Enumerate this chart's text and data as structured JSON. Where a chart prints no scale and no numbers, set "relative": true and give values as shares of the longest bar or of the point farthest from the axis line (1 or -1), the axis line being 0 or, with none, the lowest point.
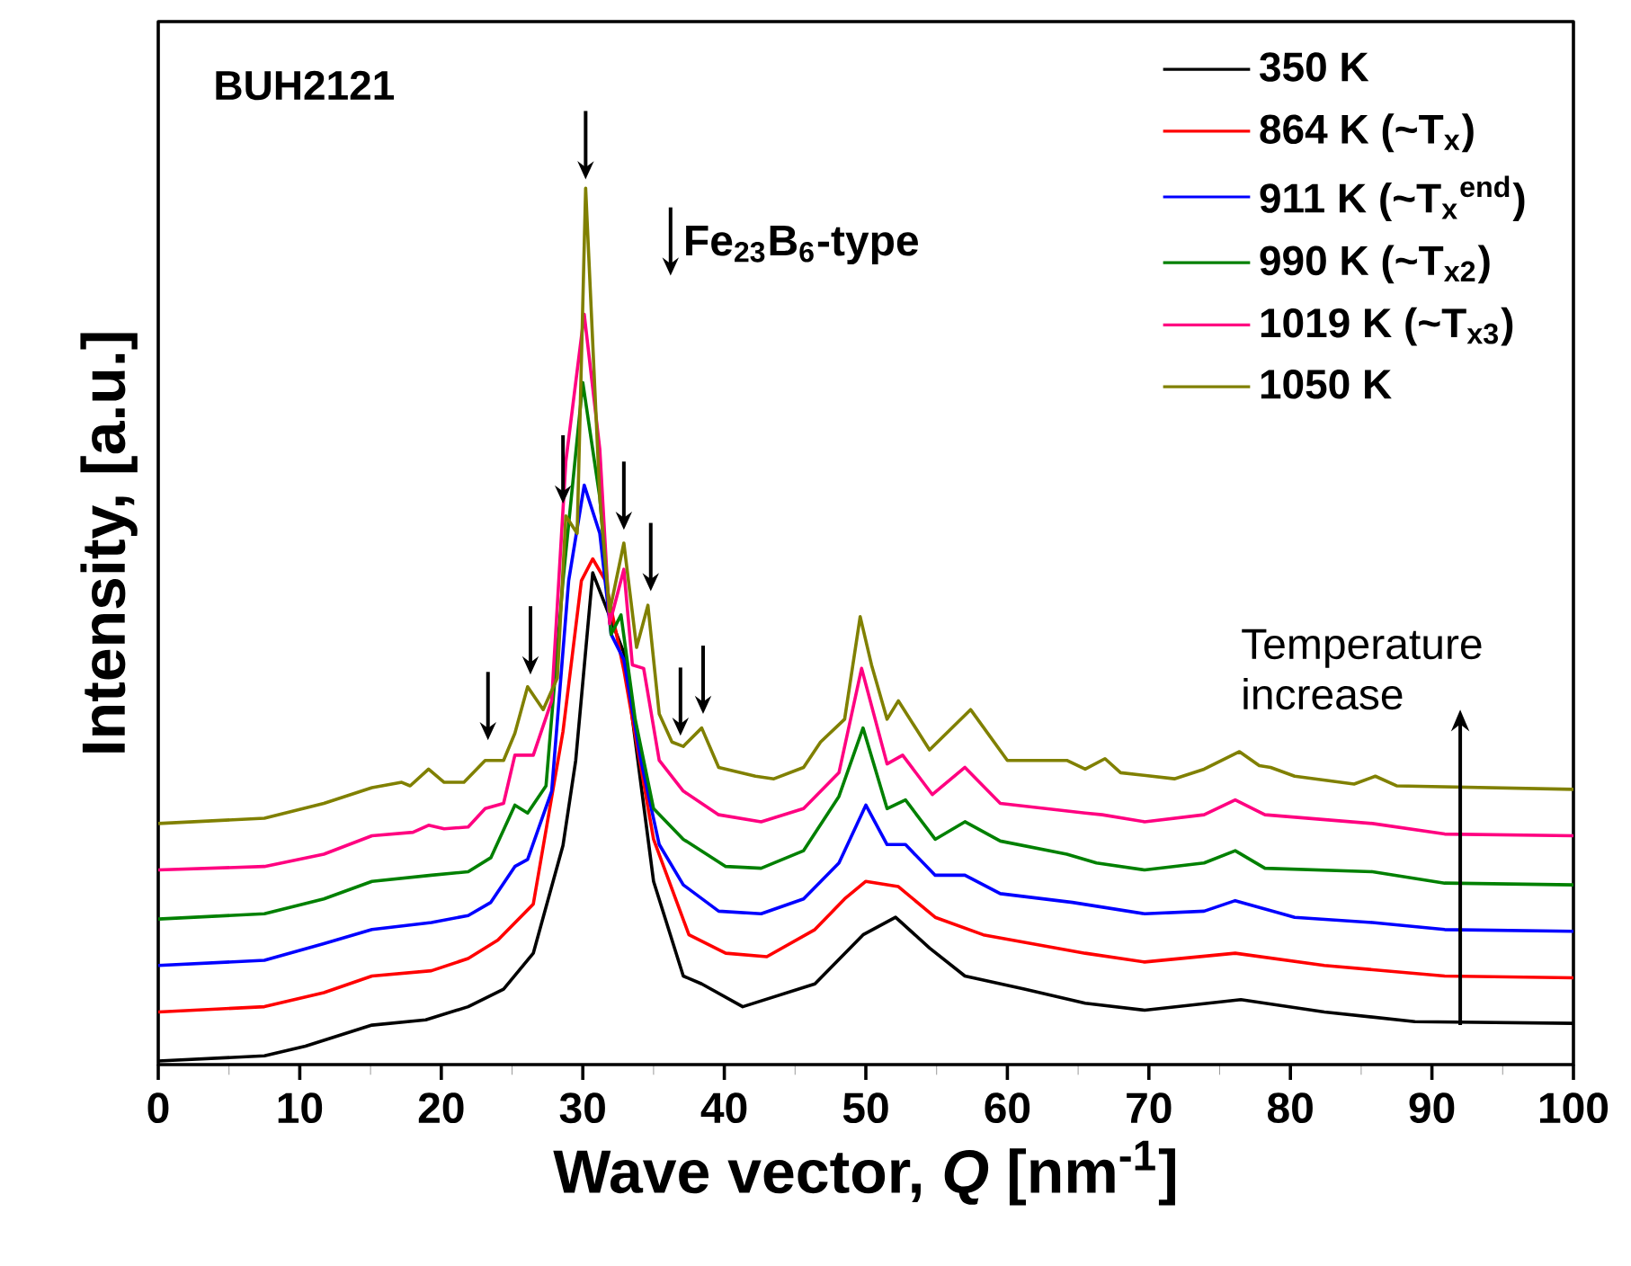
{
  "chart_data": {
    "type": "line",
    "relative": true,
    "xlabel": "Wave vector, *Q* [nm$^{-1}$]",
    "ylabel": "Intensity, [a.u.]",
    "xlim": [
      0,
      100
    ],
    "xticks": [
      0,
      10,
      20,
      30,
      40,
      50,
      60,
      70,
      80,
      90,
      100
    ],
    "legend": "top right",
    "grid": false,
    "marker": "none",
    "line_style": "solid",
    "annotations": [
      "BUH2121",
      "Fe$_{23}$B$_{6}$-type",
      "Temperature increase"
    ],
    "series": [
      {
        "name": "350 K",
        "color": "#000000",
        "x": [
          0,
          7.5,
          10.4,
          15.1,
          18.9,
          21.9,
          24.4,
          26.5,
          28.6,
          29.5,
          30.7,
          32.9,
          35,
          37.1,
          38.4,
          41.3,
          46.4,
          49.8,
          52.1,
          54.5,
          57,
          61.2,
          65.5,
          69.7,
          76.5,
          82.4,
          88.8,
          100
        ],
        "values": [
          0.004,
          0.01,
          0.021,
          0.045,
          0.051,
          0.066,
          0.086,
          0.127,
          0.25,
          0.347,
          0.561,
          0.47,
          0.209,
          0.101,
          0.092,
          0.066,
          0.092,
          0.148,
          0.168,
          0.133,
          0.101,
          0.086,
          0.07,
          0.062,
          0.074,
          0.06,
          0.049,
          0.047
        ]
      },
      {
        "name": "864 K (~T$_{x}$)",
        "color": "#ff0000",
        "x": [
          0,
          7.5,
          11.7,
          15.1,
          19.3,
          21.9,
          24,
          26.5,
          28.6,
          29.9,
          30.7,
          31.6,
          32.9,
          35,
          37.5,
          40.1,
          43,
          46.4,
          48.5,
          50,
          52.3,
          54.9,
          58.3,
          65.5,
          69.7,
          76.1,
          82.4,
          90.9,
          100
        ],
        "values": [
          0.06,
          0.066,
          0.082,
          0.101,
          0.107,
          0.121,
          0.142,
          0.183,
          0.38,
          0.552,
          0.577,
          0.552,
          0.45,
          0.257,
          0.148,
          0.127,
          0.123,
          0.154,
          0.189,
          0.209,
          0.203,
          0.168,
          0.148,
          0.127,
          0.117,
          0.127,
          0.113,
          0.101,
          0.099
        ]
      },
      {
        "name": "911 K (~T$_{x}$$^{end}$)",
        "color": "#0000ff",
        "x": [
          0,
          7.5,
          11.7,
          15.1,
          19.3,
          21.9,
          23.5,
          25.2,
          26.1,
          27.8,
          29,
          30.1,
          31.2,
          32,
          32.9,
          34.1,
          35.4,
          37.1,
          39.6,
          42.6,
          45.6,
          48.1,
          50,
          51.5,
          52.8,
          54.9,
          57,
          59.5,
          64.6,
          69.7,
          73.9,
          76.1,
          80.3,
          85.8,
          90.9,
          100
        ],
        "values": [
          0.113,
          0.119,
          0.138,
          0.154,
          0.162,
          0.17,
          0.185,
          0.226,
          0.234,
          0.312,
          0.552,
          0.661,
          0.606,
          0.491,
          0.462,
          0.347,
          0.251,
          0.205,
          0.175,
          0.172,
          0.189,
          0.23,
          0.296,
          0.251,
          0.251,
          0.216,
          0.216,
          0.195,
          0.185,
          0.172,
          0.175,
          0.187,
          0.168,
          0.162,
          0.154,
          0.152
        ]
      },
      {
        "name": "990 K (~T$_{x2}$)",
        "color": "#008000",
        "x": [
          0,
          7.5,
          11.7,
          15.1,
          19.3,
          21.9,
          23.5,
          25.2,
          26.1,
          27.4,
          28.6,
          30,
          31.2,
          32,
          32.7,
          33.7,
          35,
          37.1,
          40.1,
          42.6,
          45.6,
          48.1,
          49.8,
          51.5,
          52.8,
          54.9,
          57,
          59.5,
          64.2,
          66.3,
          69.7,
          73.9,
          76.1,
          78.2,
          85.8,
          90.9,
          100
        ],
        "values": [
          0.166,
          0.172,
          0.189,
          0.209,
          0.216,
          0.22,
          0.236,
          0.296,
          0.287,
          0.318,
          0.552,
          0.778,
          0.647,
          0.491,
          0.513,
          0.394,
          0.292,
          0.257,
          0.226,
          0.224,
          0.244,
          0.306,
          0.384,
          0.292,
          0.302,
          0.257,
          0.277,
          0.255,
          0.24,
          0.23,
          0.222,
          0.23,
          0.244,
          0.224,
          0.22,
          0.207,
          0.205
        ]
      },
      {
        "name": "1019 K (~T$_{x3}$)",
        "color": "#ff0080",
        "x": [
          0,
          7.5,
          11.7,
          15.1,
          18,
          19.1,
          20.2,
          21.9,
          23.1,
          24.4,
          25.2,
          26.5,
          27.8,
          28.8,
          30.1,
          31.2,
          31.9,
          32.9,
          33.5,
          34.3,
          35.4,
          37.1,
          39.6,
          42.6,
          45.6,
          48.1,
          49.7,
          51.5,
          52.6,
          54.7,
          57,
          59.5,
          65.5,
          66.7,
          69.7,
          73.9,
          76.1,
          78.2,
          85.8,
          90.9,
          100
        ],
        "values": [
          0.222,
          0.226,
          0.24,
          0.261,
          0.265,
          0.273,
          0.269,
          0.271,
          0.292,
          0.298,
          0.353,
          0.353,
          0.415,
          0.688,
          0.856,
          0.702,
          0.503,
          0.565,
          0.456,
          0.452,
          0.347,
          0.312,
          0.285,
          0.277,
          0.292,
          0.333,
          0.452,
          0.343,
          0.353,
          0.308,
          0.339,
          0.298,
          0.287,
          0.285,
          0.277,
          0.285,
          0.302,
          0.285,
          0.275,
          0.263,
          0.261
        ]
      },
      {
        "name": "1050 K",
        "color": "#808000",
        "x": [
          0,
          7.5,
          11.7,
          15.1,
          17.2,
          17.8,
          19.1,
          20.2,
          21.6,
          23.1,
          24.4,
          25.2,
          26.1,
          27.2,
          28.2,
          28.8,
          29.6,
          30.2,
          31.2,
          31.9,
          32.9,
          33.8,
          34.6,
          35.4,
          36.3,
          37.1,
          38.4,
          39.6,
          42.2,
          43.5,
          45.6,
          46.8,
          48.5,
          49.6,
          50.4,
          51.5,
          52.3,
          54.5,
          55.7,
          57.4,
          60,
          62.9,
          64.2,
          65.5,
          66.9,
          68,
          71.8,
          73.9,
          76.4,
          77.8,
          78.6,
          80.3,
          84.5,
          86,
          87.5,
          100
        ],
        "values": [
          0.275,
          0.281,
          0.298,
          0.316,
          0.322,
          0.318,
          0.337,
          0.322,
          0.322,
          0.347,
          0.347,
          0.378,
          0.431,
          0.405,
          0.441,
          0.626,
          0.606,
          1,
          0.647,
          0.517,
          0.595,
          0.476,
          0.524,
          0.4,
          0.368,
          0.363,
          0.384,
          0.339,
          0.329,
          0.326,
          0.339,
          0.368,
          0.394,
          0.511,
          0.456,
          0.394,
          0.415,
          0.359,
          0.378,
          0.405,
          0.347,
          0.347,
          0.347,
          0.337,
          0.349,
          0.333,
          0.326,
          0.337,
          0.357,
          0.341,
          0.339,
          0.329,
          0.32,
          0.329,
          0.318,
          0.314
        ]
      }
    ]
  }
}
